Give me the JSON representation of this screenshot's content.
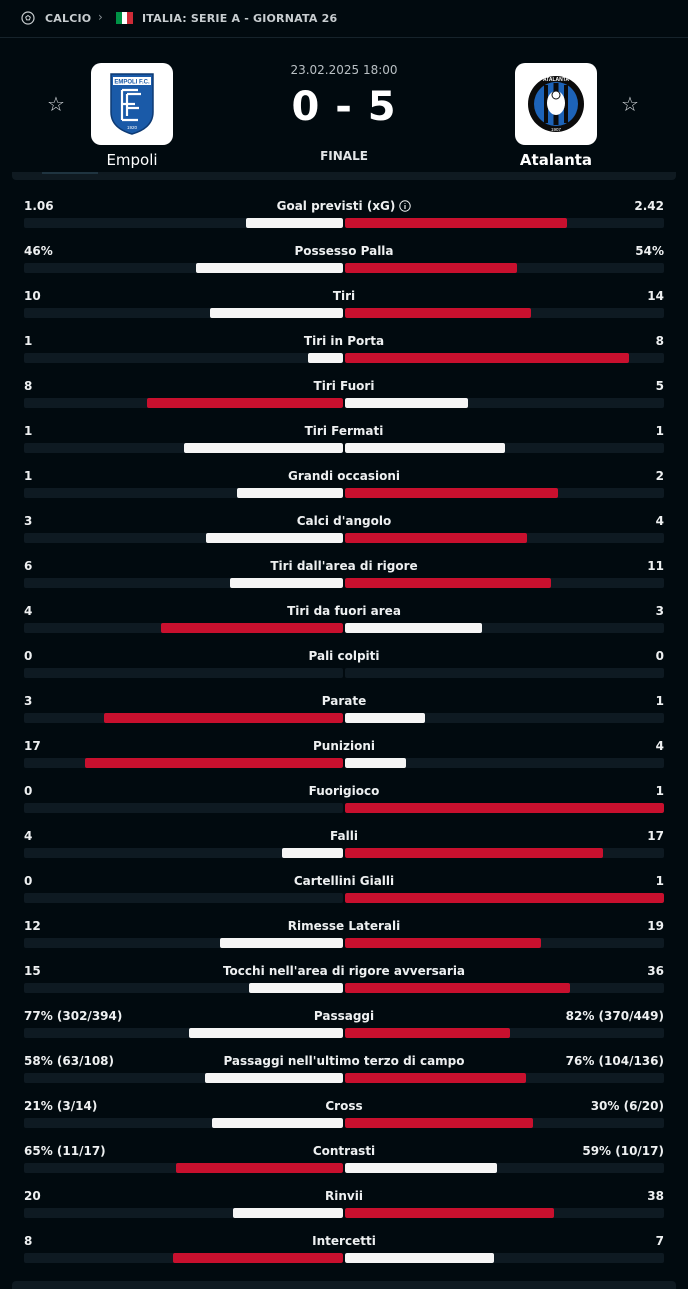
{
  "breadcrumb": {
    "sport": "CALCIO",
    "league": "ITALIA: SERIE A - GIORNATA 26",
    "flag_colors": [
      "#009246",
      "#ffffff",
      "#ce2b37"
    ]
  },
  "match": {
    "datetime": "23.02.2025 18:00",
    "score": "0 - 5",
    "status": "FINALE",
    "home": {
      "name": "Empoli",
      "logo_text": "EMPOLI F.C.",
      "logo_year": "1920",
      "color": "#1a5aa8"
    },
    "away": {
      "name": "Atalanta",
      "logo_text": "ATALANTA",
      "logo_year": "1907",
      "color": "#1d63b8"
    }
  },
  "colors": {
    "winner": "#c8102e",
    "other": "#f5f5f5",
    "track": "#0e1a22"
  },
  "stats": [
    {
      "name": "Goal previsti (xG)",
      "home": "1.06",
      "away": "2.42",
      "hv": 1.06,
      "av": 2.42,
      "info": true
    },
    {
      "name": "Possesso Palla",
      "home": "46%",
      "away": "54%",
      "hv": 46,
      "av": 54
    },
    {
      "name": "Tiri",
      "home": "10",
      "away": "14",
      "hv": 10,
      "av": 14
    },
    {
      "name": "Tiri in Porta",
      "home": "1",
      "away": "8",
      "hv": 1,
      "av": 8
    },
    {
      "name": "Tiri Fuori",
      "home": "8",
      "away": "5",
      "hv": 8,
      "av": 5
    },
    {
      "name": "Tiri Fermati",
      "home": "1",
      "away": "1",
      "hv": 1,
      "av": 1
    },
    {
      "name": "Grandi occasioni",
      "home": "1",
      "away": "2",
      "hv": 1,
      "av": 2
    },
    {
      "name": "Calci d'angolo",
      "home": "3",
      "away": "4",
      "hv": 3,
      "av": 4
    },
    {
      "name": "Tiri dall'area di rigore",
      "home": "6",
      "away": "11",
      "hv": 6,
      "av": 11
    },
    {
      "name": "Tiri da fuori area",
      "home": "4",
      "away": "3",
      "hv": 4,
      "av": 3
    },
    {
      "name": "Pali colpiti",
      "home": "0",
      "away": "0",
      "hv": 0,
      "av": 0
    },
    {
      "name": "Parate",
      "home": "3",
      "away": "1",
      "hv": 3,
      "av": 1
    },
    {
      "name": "Punizioni",
      "home": "17",
      "away": "4",
      "hv": 17,
      "av": 4
    },
    {
      "name": "Fuorigioco",
      "home": "0",
      "away": "1",
      "hv": 0,
      "av": 1
    },
    {
      "name": "Falli",
      "home": "4",
      "away": "17",
      "hv": 4,
      "av": 17
    },
    {
      "name": "Cartellini Gialli",
      "home": "0",
      "away": "1",
      "hv": 0,
      "av": 1
    },
    {
      "name": "Rimesse Laterali",
      "home": "12",
      "away": "19",
      "hv": 12,
      "av": 19
    },
    {
      "name": "Tocchi nell'area di rigore avversaria",
      "home": "15",
      "away": "36",
      "hv": 15,
      "av": 36
    },
    {
      "name": "Passaggi",
      "home": "77% (302/394)",
      "away": "82% (370/449)",
      "hv": 77,
      "av": 82
    },
    {
      "name": "Passaggi nell'ultimo terzo di campo",
      "home": "58% (63/108)",
      "away": "76% (104/136)",
      "hv": 58,
      "av": 76
    },
    {
      "name": "Cross",
      "home": "21% (3/14)",
      "away": "30% (6/20)",
      "hv": 21,
      "av": 30
    },
    {
      "name": "Contrasti",
      "home": "65% (11/17)",
      "away": "59% (10/17)",
      "hv": 65,
      "av": 59
    },
    {
      "name": "Rinvii",
      "home": "20",
      "away": "38",
      "hv": 20,
      "av": 38
    },
    {
      "name": "Intercetti",
      "home": "8",
      "away": "7",
      "hv": 8,
      "av": 7
    }
  ]
}
